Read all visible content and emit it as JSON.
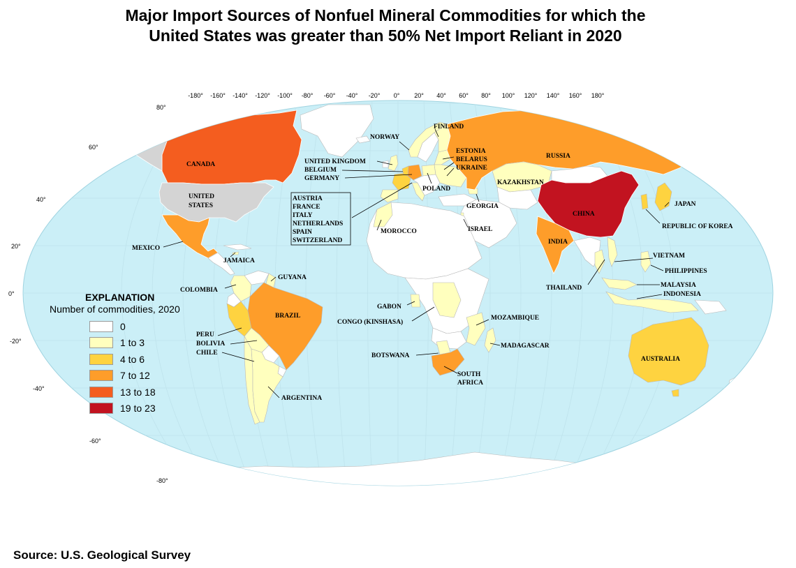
{
  "title_line1": "Major Import Sources of Nonfuel Mineral Commodities for which the",
  "title_line2": "United States was greater than 50% Net Import Reliant in 2020",
  "source": "Source: U.S. Geological Survey",
  "legend": {
    "title": "EXPLANATION",
    "subtitle": "Number of commodities, 2020",
    "items": [
      {
        "label": "0",
        "color": "#ffffff"
      },
      {
        "label": "1 to 3",
        "color": "#ffffbe"
      },
      {
        "label": "4 to 6",
        "color": "#fed340"
      },
      {
        "label": "7 to 12",
        "color": "#fe9d2a"
      },
      {
        "label": "13 to 18",
        "color": "#f45d1f"
      },
      {
        "label": "19 to 23",
        "color": "#c21320"
      }
    ]
  },
  "colors": {
    "ocean": "#cbeff7",
    "no_data": "#d4d4d4",
    "border": "#b8b8b8"
  },
  "longitude_labels": [
    "-180°",
    "-160°",
    "-140°",
    "-120°",
    "-100°",
    "-80°",
    "-60°",
    "-40°",
    "-20°",
    "0°",
    "20°",
    "40°",
    "60°",
    "80°",
    "100°",
    "120°",
    "140°",
    "160°",
    "180°"
  ],
  "latitude_labels": [
    "80°",
    "60°",
    "40°",
    "20°",
    "0°",
    "-20°",
    "-40°",
    "-60°",
    "-80°"
  ],
  "country_labels": {
    "canada": "CANADA",
    "us_line1": "UNITED",
    "us_line2": "STATES",
    "mexico": "MEXICO",
    "jamaica": "JAMAICA",
    "colombia": "COLOMBIA",
    "guyana": "GUYANA",
    "brazil": "BRAZIL",
    "peru": "PERU",
    "bolivia": "BOLIVIA",
    "chile": "CHILE",
    "argentina": "ARGENTINA",
    "norway": "NORWAY",
    "finland": "FINLAND",
    "united_kingdom": "UNITED KINGDOM",
    "belgium": "BELGIUM",
    "germany": "GERMANY",
    "estonia": "ESTONIA",
    "belarus": "BELARUS",
    "ukraine": "UKRAINE",
    "poland": "POLAND",
    "georgia": "GEORGIA",
    "russia": "RUSSIA",
    "kazakhstan": "KAZAKHSTAN",
    "box_countries": [
      "AUSTRIA",
      "FRANCE",
      "ITALY",
      "NETHERLANDS",
      "SPAIN",
      "SWITZERLAND"
    ],
    "morocco": "MOROCCO",
    "israel": "ISRAEL",
    "china": "CHINA",
    "japan": "JAPAN",
    "korea": "REPUBLIC OF KOREA",
    "india": "INDIA",
    "vietnam": "VIETNAM",
    "philippines": "PHILIPPINES",
    "thailand": "THAILAND",
    "malaysia": "MALAYSIA",
    "indonesia": "INDONESIA",
    "gabon": "GABON",
    "congo": "CONGO (KINSHASA)",
    "mozambique": "MOZAMBIQUE",
    "madagascar": "MADAGASCAR",
    "botswana": "BOTSWANA",
    "south_africa_line1": "SOUTH",
    "south_africa_line2": "AFRICA",
    "australia": "AUSTRALIA"
  }
}
